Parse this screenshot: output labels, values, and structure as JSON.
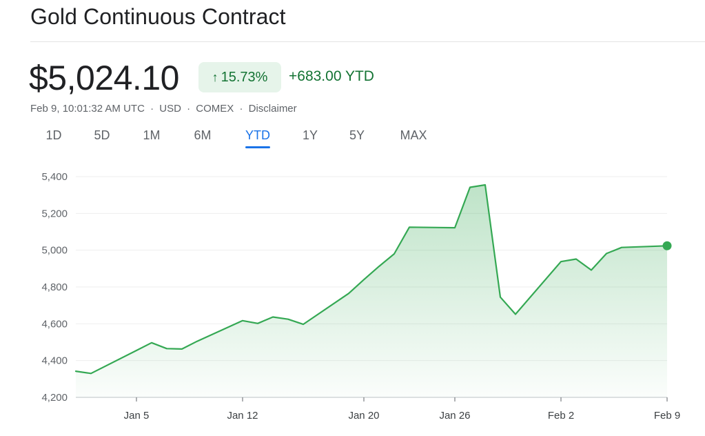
{
  "header": {
    "title": "Gold Continuous Contract"
  },
  "quote": {
    "price": "$5,024.10",
    "change_pct": "15.73%",
    "change_ytd": "+683.00 YTD",
    "timestamp": "Feb 9, 10:01:32 AM UTC",
    "currency": "USD",
    "exchange": "COMEX",
    "disclaimer": "Disclaimer",
    "separator": "·"
  },
  "tabs": [
    {
      "label": "1D"
    },
    {
      "label": "5D"
    },
    {
      "label": "1M"
    },
    {
      "label": "6M"
    },
    {
      "label": "YTD",
      "active": true
    },
    {
      "label": "1Y"
    },
    {
      "label": "5Y"
    },
    {
      "label": "MAX"
    }
  ],
  "colors": {
    "accent": "#1a73e8",
    "positive": "#137333",
    "line": "#34a853",
    "chip_bg": "#e6f4ea"
  },
  "icons": {
    "change_arrow": "arrow-up-icon"
  },
  "chart_data": {
    "type": "area",
    "title": "",
    "xlabel": "",
    "ylabel": "",
    "ylim": [
      4200,
      5400
    ],
    "y_ticks": [
      "5,400",
      "5,200",
      "5,000",
      "4,800",
      "4,600",
      "4,400",
      "4,200"
    ],
    "y_tick_values": [
      5400,
      5200,
      5000,
      4800,
      4600,
      4400,
      4200
    ],
    "x_ticks": [
      {
        "label": "Jan 5",
        "day": 5
      },
      {
        "label": "Jan 12",
        "day": 12
      },
      {
        "label": "Jan 20",
        "day": 20
      },
      {
        "label": "Jan 26",
        "day": 26
      },
      {
        "label": "Feb 2",
        "day": 33
      },
      {
        "label": "Feb 9",
        "day": 40
      }
    ],
    "series": [
      {
        "x": [
          1,
          2,
          5,
          6,
          7,
          8,
          9,
          12,
          13,
          14,
          15,
          16,
          19,
          20,
          21,
          22,
          23,
          26,
          27,
          28,
          29,
          30,
          33,
          34,
          35,
          36,
          37,
          40
        ],
        "values": [
          4342,
          4330,
          4455,
          4497,
          4465,
          4463,
          4505,
          4617,
          4602,
          4637,
          4625,
          4597,
          4765,
          4840,
          4912,
          4980,
          5125,
          5122,
          5342,
          5355,
          4745,
          4652,
          4938,
          4952,
          4892,
          4982,
          5015,
          5024
        ]
      }
    ],
    "grid": true,
    "legend": "none"
  }
}
